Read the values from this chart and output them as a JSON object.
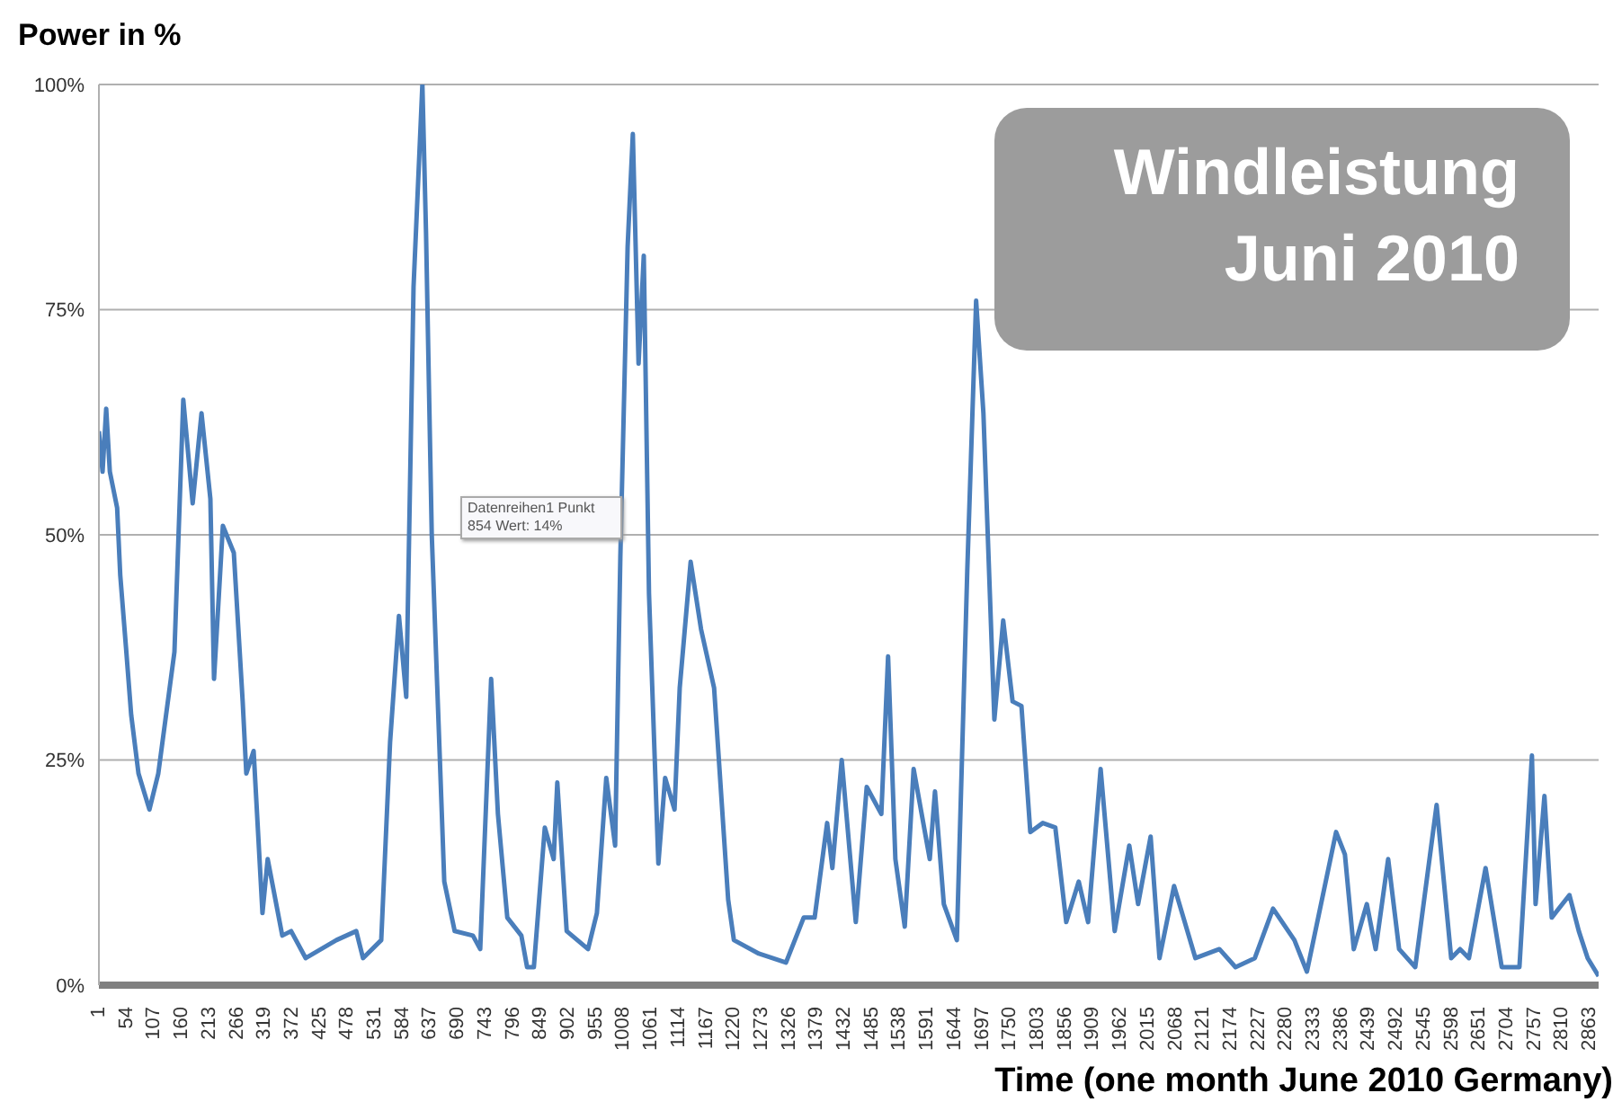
{
  "chart_data": {
    "type": "line",
    "ylabel": "Power in %",
    "xlabel": "Time (one month June 2010 Germany)",
    "annotations": [
      "Windleistung Juni 2010",
      "Datenreihen1 Punkt 854 Wert: 14%"
    ],
    "x": [
      1,
      8,
      15,
      22,
      36,
      42,
      53,
      63,
      77,
      98,
      115,
      146,
      163,
      181,
      198,
      215,
      222,
      239,
      260,
      277,
      284,
      298,
      315,
      325,
      353,
      370,
      398,
      457,
      495,
      508,
      543,
      560,
      577,
      591,
      605,
      622,
      629,
      640,
      664,
      684,
      719,
      733,
      754,
      767,
      785,
      812,
      823,
      836,
      857,
      874,
      881,
      899,
      940,
      957,
      975,
      992,
      1002,
      1016,
      1026,
      1037,
      1047,
      1057,
      1075,
      1088,
      1106,
      1116,
      1137,
      1157,
      1182,
      1209,
      1220,
      1268,
      1320,
      1354,
      1375,
      1399,
      1409,
      1427,
      1454,
      1475,
      1503,
      1516,
      1530,
      1548,
      1565,
      1596,
      1606,
      1623,
      1648,
      1668,
      1685,
      1699,
      1720,
      1737,
      1755,
      1772,
      1789,
      1813,
      1837,
      1858,
      1882,
      1900,
      1924,
      1951,
      1979,
      1996,
      2020,
      2037,
      2065,
      2106,
      2152,
      2183,
      2220,
      2255,
      2296,
      2320,
      2376,
      2393,
      2410,
      2435,
      2452,
      2476,
      2497,
      2528,
      2569,
      2597,
      2614,
      2631,
      2663,
      2694,
      2728,
      2752,
      2759,
      2776,
      2790,
      2824,
      2842,
      2859,
      2880
    ],
    "series": [
      {
        "color": "#4a7ebb",
        "values": [
          61.5,
          57,
          64,
          57,
          53,
          45.5,
          37.5,
          30,
          23.5,
          19.5,
          23.5,
          37,
          65,
          53.5,
          63.5,
          54,
          34,
          51,
          48,
          31.5,
          23.5,
          26,
          8,
          14,
          5.5,
          6,
          3,
          5,
          6,
          3,
          5,
          27,
          41,
          32,
          77.5,
          100,
          83.5,
          50,
          11.5,
          6,
          5.5,
          4,
          34,
          19,
          7.5,
          5.5,
          2,
          2,
          17.5,
          14,
          22.5,
          6,
          4,
          8,
          23,
          15.5,
          47.5,
          82,
          94.5,
          69,
          81,
          43.5,
          13.5,
          23,
          19.5,
          33,
          47,
          39.5,
          33,
          9.5,
          5,
          3.5,
          2.5,
          7.5,
          7.5,
          18,
          13,
          25,
          7,
          22,
          19,
          36.5,
          14,
          6.5,
          24,
          14,
          21.5,
          9,
          5,
          46,
          76,
          63.5,
          29.5,
          40.5,
          31.5,
          31,
          17,
          18,
          17.5,
          7,
          11.5,
          7,
          24,
          6,
          15.5,
          9,
          16.5,
          3,
          11,
          3,
          4,
          2,
          3,
          8.5,
          5,
          1.5,
          17,
          14.5,
          4,
          9,
          4,
          14,
          4,
          2,
          20,
          3,
          4,
          3,
          13,
          2,
          2,
          25.5,
          9,
          21,
          7.5,
          10,
          6,
          3,
          1
        ]
      }
    ],
    "xlim": [
      1,
      2880
    ],
    "xticks": [
      1,
      54,
      107,
      160,
      213,
      266,
      319,
      372,
      425,
      478,
      531,
      584,
      637,
      690,
      743,
      796,
      849,
      902,
      955,
      1008,
      1061,
      1114,
      1167,
      1220,
      1273,
      1326,
      1379,
      1432,
      1485,
      1538,
      1591,
      1644,
      1697,
      1750,
      1803,
      1856,
      1909,
      1962,
      2015,
      2068,
      2121,
      2174,
      2227,
      2280,
      2333,
      2386,
      2439,
      2492,
      2545,
      2598,
      2651,
      2704,
      2757,
      2810,
      2863
    ],
    "ylim": [
      0,
      100
    ],
    "yticks": [
      {
        "value": 0,
        "label": "0%"
      },
      {
        "value": 25,
        "label": "25%"
      },
      {
        "value": 50,
        "label": "50%"
      },
      {
        "value": 75,
        "label": "75%"
      },
      {
        "value": 100,
        "label": "100%"
      }
    ],
    "grid": "y",
    "marker": "none",
    "line_style": "solid"
  }
}
